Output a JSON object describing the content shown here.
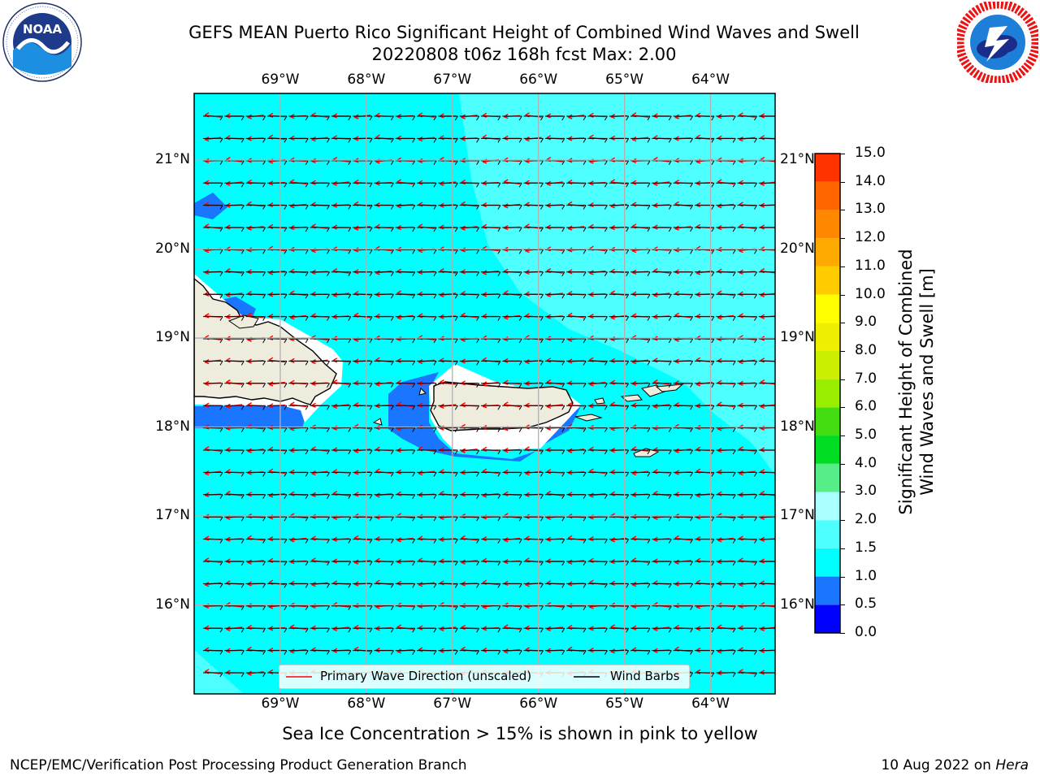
{
  "header": {
    "title_line1": "GEFS MEAN Puerto Rico Significant Height of Combined Wind Waves and Swell",
    "title_line2": "20220808 t06z 168h fcst   Max: 2.00"
  },
  "logos": {
    "left": {
      "name": "NOAA",
      "ring_text": "NATIONAL OCEANIC AND ATMOSPHERIC ADMINISTRATION · U.S. DEPARTMENT OF COMMERCE"
    },
    "right": {
      "ring_text": "NATIONAL WEATHER SERVICE"
    }
  },
  "map": {
    "lon_labels": [
      "69°W",
      "68°W",
      "67°W",
      "66°W",
      "65°W",
      "64°W"
    ],
    "lat_labels": [
      "21°N",
      "20°N",
      "19°N",
      "18°N",
      "17°N",
      "16°N"
    ],
    "lon_values": [
      -69,
      -68,
      -67,
      -66,
      -65,
      -64
    ],
    "lat_values": [
      21,
      20,
      19,
      18,
      17,
      16
    ],
    "extent": {
      "lon": [
        -70,
        -63.25
      ],
      "lat": [
        15,
        21.75
      ]
    },
    "colors": {
      "ocean": "#00ffff",
      "land": "#eeecdc",
      "band_1_0_to_1_5": "#00f0f5",
      "band_1_5_to_2_0": "#4dffff",
      "band_0_5_to_1_0": "#1a75ff",
      "wave_arrow": "#ff0000",
      "wind_barb": "#000000",
      "grid": "#b0b0b0"
    }
  },
  "legend": {
    "primary_wave": "Primary Wave Direction (unscaled)",
    "wind_barbs": "Wind Barbs"
  },
  "colorbar": {
    "label_line1": "Significant Height of Combined",
    "label_line2": "Wind Waves and Swell [m]",
    "ticks": [
      "15.0",
      "14.0",
      "13.0",
      "12.0",
      "11.0",
      "10.0",
      "9.0",
      "8.0",
      "7.0",
      "6.0",
      "5.0",
      "4.0",
      "3.0",
      "2.0",
      "1.5",
      "1.0",
      "0.5",
      "0.0"
    ],
    "bands": [
      {
        "from": 0.0,
        "to": 0.5,
        "color": "#0000ff"
      },
      {
        "from": 0.5,
        "to": 1.0,
        "color": "#1a75ff"
      },
      {
        "from": 1.0,
        "to": 1.5,
        "color": "#00ffff"
      },
      {
        "from": 1.5,
        "to": 2.0,
        "color": "#4dffff"
      },
      {
        "from": 2.0,
        "to": 3.0,
        "color": "#aaffff"
      },
      {
        "from": 3.0,
        "to": 4.0,
        "color": "#55ee88"
      },
      {
        "from": 4.0,
        "to": 5.0,
        "color": "#00dd22"
      },
      {
        "from": 5.0,
        "to": 6.0,
        "color": "#44dd11"
      },
      {
        "from": 6.0,
        "to": 7.0,
        "color": "#99ee00"
      },
      {
        "from": 7.0,
        "to": 8.0,
        "color": "#ccee00"
      },
      {
        "from": 8.0,
        "to": 9.0,
        "color": "#eeee00"
      },
      {
        "from": 9.0,
        "to": 10.0,
        "color": "#ffff00"
      },
      {
        "from": 10.0,
        "to": 11.0,
        "color": "#ffcc00"
      },
      {
        "from": 11.0,
        "to": 12.0,
        "color": "#ffaa00"
      },
      {
        "from": 12.0,
        "to": 13.0,
        "color": "#ff8800"
      },
      {
        "from": 13.0,
        "to": 14.0,
        "color": "#ff6600"
      },
      {
        "from": 14.0,
        "to": 15.0,
        "color": "#ff3300"
      },
      {
        "from": 15.0,
        "to": 16.0,
        "color": "#ff0000"
      }
    ]
  },
  "notes": {
    "sea_ice": "Sea Ice Concentration > 15% is shown in pink to yellow"
  },
  "footer": {
    "left": "NCEP/EMC/Verification Post Processing Product Generation Branch",
    "right_date": "10 Aug 2022 on ",
    "right_host": "Hera"
  }
}
